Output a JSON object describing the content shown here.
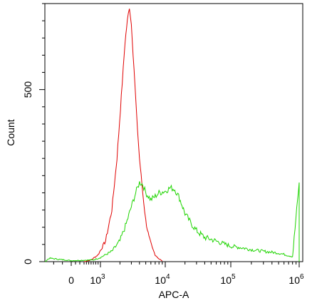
{
  "chart_data": {
    "type": "line",
    "title": "",
    "xlabel": "APC-A",
    "ylabel": "Count",
    "x_scale": "biexponential",
    "xlim": [
      -300,
      1000000
    ],
    "ylim": [
      0,
      750
    ],
    "grid": false,
    "legend": "none",
    "x_ticks": [
      {
        "value": 0,
        "label": "0",
        "exp": ""
      },
      {
        "value": 1000,
        "label": "10",
        "exp": "3"
      },
      {
        "value": 10000,
        "label": "10",
        "exp": "4"
      },
      {
        "value": 100000,
        "label": "10",
        "exp": "5"
      },
      {
        "value": 1000000,
        "label": "10",
        "exp": "6"
      }
    ],
    "y_ticks": [
      {
        "value": 0,
        "label": "0"
      },
      {
        "value": 500,
        "label": "500"
      }
    ],
    "series": [
      {
        "color": "#e00000",
        "x": [
          300,
          600,
          900,
          1200,
          1500,
          1800,
          2100,
          2400,
          2600,
          2800,
          3000,
          3300,
          3600,
          4000,
          4500,
          5000,
          5600,
          6300,
          7000,
          8000,
          9000
        ],
        "y": [
          0,
          5,
          20,
          60,
          150,
          300,
          480,
          640,
          700,
          740,
          690,
          560,
          430,
          300,
          200,
          120,
          70,
          40,
          20,
          8,
          2
        ]
      },
      {
        "color": "#1ed400",
        "x": [
          -300,
          -250,
          0,
          700,
          1000,
          1500,
          2000,
          2500,
          3000,
          3500,
          4000,
          4500,
          5000,
          6000,
          7000,
          8000,
          10000,
          12000,
          14000,
          16000,
          18000,
          20000,
          25000,
          30000,
          40000,
          50000,
          70000,
          100000,
          150000,
          200000,
          300000,
          500000,
          800000,
          1000000
        ],
        "y": [
          0,
          10,
          3,
          5,
          12,
          30,
          60,
          110,
          160,
          200,
          230,
          225,
          200,
          180,
          190,
          200,
          205,
          215,
          210,
          190,
          165,
          140,
          110,
          90,
          70,
          65,
          55,
          45,
          40,
          35,
          30,
          25,
          15,
          230
        ]
      }
    ]
  }
}
